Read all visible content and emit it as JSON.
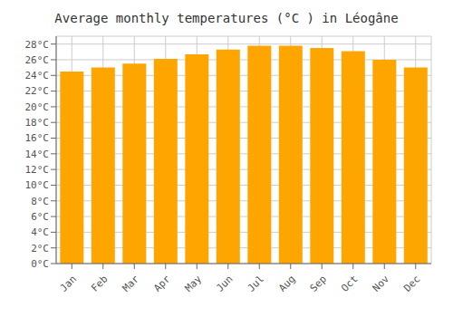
{
  "chart_data": {
    "type": "bar",
    "title": "Average monthly temperatures (°C ) in Léogâne",
    "categories": [
      "Jan",
      "Feb",
      "Mar",
      "Apr",
      "May",
      "Jun",
      "Jul",
      "Aug",
      "Sep",
      "Oct",
      "Nov",
      "Dec"
    ],
    "values": [
      24.5,
      25.0,
      25.5,
      26.1,
      26.7,
      27.3,
      27.8,
      27.8,
      27.5,
      27.1,
      26.0,
      25.0
    ],
    "color": "#FFA500",
    "ylim": [
      0,
      29
    ],
    "yticks": [
      {
        "value": 0,
        "label": "0°C"
      },
      {
        "value": 2,
        "label": "2°C"
      },
      {
        "value": 4,
        "label": "4°C"
      },
      {
        "value": 6,
        "label": "6°C"
      },
      {
        "value": 8,
        "label": "8°C"
      },
      {
        "value": 10,
        "label": "10°C"
      },
      {
        "value": 12,
        "label": "12°C"
      },
      {
        "value": 14,
        "label": "14°C"
      },
      {
        "value": 16,
        "label": "16°C"
      },
      {
        "value": 18,
        "label": "18°C"
      },
      {
        "value": 20,
        "label": "20°C"
      },
      {
        "value": 22,
        "label": "22°C"
      },
      {
        "value": 24,
        "label": "24°C"
      },
      {
        "value": 26,
        "label": "26°C"
      },
      {
        "value": 28,
        "label": "28°C"
      }
    ],
    "grid": true
  }
}
